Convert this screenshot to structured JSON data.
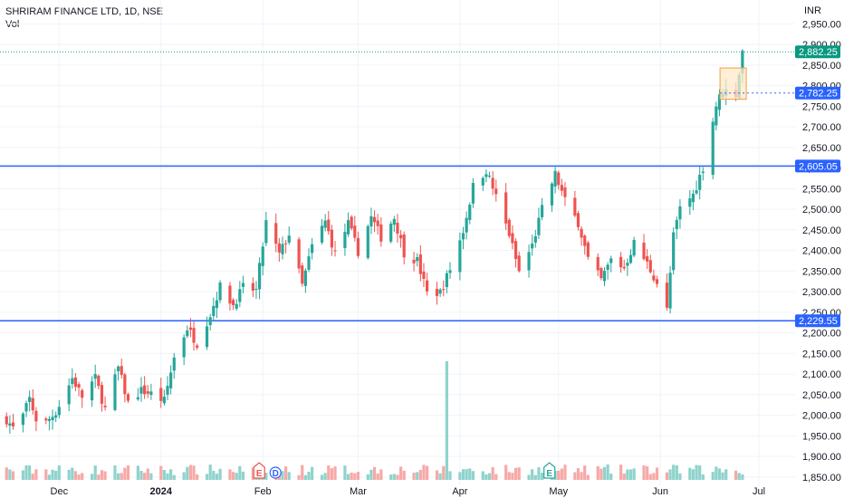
{
  "header": {
    "title": "SHRIRAM FINANCE LTD, 1D, NSE",
    "volume_label": "Vol"
  },
  "currency": "INR",
  "colors": {
    "up": "#26a69a",
    "down": "#ef5350",
    "up_volume": "#8fd3cc",
    "down_volume": "#f7a9a7",
    "level_line": "#2962ff",
    "current_price": "#089981",
    "zone_fill": "#fde9c8",
    "zone_border": "#f0a040",
    "grid": "#f0f3fa"
  },
  "events": [
    {
      "label": "E",
      "color": "#ef5350",
      "month_index": 3,
      "fraction": -0.1
    },
    {
      "label": "D",
      "color": "#2962ff",
      "month_index": 3,
      "fraction": 0.35
    },
    {
      "label": "E",
      "color": "#26a69a",
      "month_index": 6,
      "fraction": -0.25
    }
  ],
  "chart_data": {
    "type": "candlestick",
    "title": "SHRIRAM FINANCE LTD, 1D, NSE",
    "ylim": [
      1830,
      2975
    ],
    "y_ticks": [
      1850,
      1900,
      1950,
      2000,
      2050,
      2100,
      2150,
      2200,
      2250,
      2300,
      2350,
      2400,
      2450,
      2500,
      2550,
      2600,
      2650,
      2700,
      2750,
      2800,
      2850,
      2900,
      2950
    ],
    "y_tick_labels": [
      "1,850.00",
      "1,900.00",
      "1,950.00",
      "2,000.00",
      "2,050.00",
      "2,100.00",
      "2,150.00",
      "2,200.00",
      "2,250.00",
      "2,300.00",
      "2,350.00",
      "2,400.00",
      "2,450.00",
      "2,500.00",
      "2,550.00",
      "2,600.00",
      "2,650.00",
      "2,700.00",
      "2,750.00",
      "2,800.00",
      "2,850.00",
      "2,900.00",
      "2,950.00"
    ],
    "x_labels": [
      "Dec",
      "2024",
      "Feb",
      "Mar",
      "Apr",
      "May",
      "Jun",
      "Jul"
    ],
    "horizontal_levels": [
      {
        "value": 2605.05,
        "label": "2,605.05"
      },
      {
        "value": 2229.55,
        "label": "2,229.55"
      }
    ],
    "last_price": {
      "value": 2882.25,
      "label": "2,882.25"
    },
    "marked_price": {
      "value": 2782.25,
      "label": "2,782.25"
    },
    "zone": {
      "top": 2843,
      "bottom": 2767
    },
    "anchors": [
      [
        "2023-11-15",
        1990
      ],
      [
        "2023-11-18",
        1958
      ],
      [
        "2023-11-22",
        2040
      ],
      [
        "2023-11-25",
        1965
      ],
      [
        "2023-11-30",
        2008
      ],
      [
        "2023-12-05",
        2090
      ],
      [
        "2023-12-08",
        2045
      ],
      [
        "2023-12-12",
        2090
      ],
      [
        "2023-12-15",
        2015
      ],
      [
        "2023-12-19",
        2115
      ],
      [
        "2023-12-22",
        2030
      ],
      [
        "2023-12-26",
        2060
      ],
      [
        "2023-12-29",
        2052
      ],
      [
        "2024-01-02",
        2035
      ],
      [
        "2024-01-05",
        2140
      ],
      [
        "2024-01-09",
        2212
      ],
      [
        "2024-01-12",
        2175
      ],
      [
        "2024-01-16",
        2245
      ],
      [
        "2024-01-19",
        2312
      ],
      [
        "2024-01-23",
        2268
      ],
      [
        "2024-01-26",
        2310
      ],
      [
        "2024-01-30",
        2303
      ],
      [
        "2024-02-02",
        2468
      ],
      [
        "2024-02-06",
        2390
      ],
      [
        "2024-02-09",
        2440
      ],
      [
        "2024-02-13",
        2315
      ],
      [
        "2024-02-16",
        2410
      ],
      [
        "2024-02-20",
        2470
      ],
      [
        "2024-02-23",
        2392
      ],
      [
        "2024-02-27",
        2465
      ],
      [
        "2024-03-01",
        2398
      ],
      [
        "2024-03-05",
        2480
      ],
      [
        "2024-03-08",
        2432
      ],
      [
        "2024-03-12",
        2480
      ],
      [
        "2024-03-15",
        2395
      ],
      [
        "2024-03-19",
        2375
      ],
      [
        "2024-03-22",
        2296
      ],
      [
        "2024-03-26",
        2298
      ],
      [
        "2024-03-29",
        2355
      ],
      [
        "2024-04-02",
        2448
      ],
      [
        "2024-04-05",
        2555
      ],
      [
        "2024-04-09",
        2595
      ],
      [
        "2024-04-12",
        2530
      ],
      [
        "2024-04-16",
        2440
      ],
      [
        "2024-04-19",
        2348
      ],
      [
        "2024-04-23",
        2412
      ],
      [
        "2024-04-26",
        2500
      ],
      [
        "2024-04-30",
        2585
      ],
      [
        "2024-05-03",
        2520
      ],
      [
        "2024-05-07",
        2468
      ],
      [
        "2024-05-10",
        2378
      ],
      [
        "2024-05-14",
        2328
      ],
      [
        "2024-05-17",
        2378
      ],
      [
        "2024-05-21",
        2358
      ],
      [
        "2024-05-24",
        2418
      ],
      [
        "2024-05-28",
        2368
      ],
      [
        "2024-05-31",
        2322
      ],
      [
        "2024-06-03",
        2255
      ],
      [
        "2024-06-05",
        2435
      ],
      [
        "2024-06-07",
        2502
      ],
      [
        "2024-06-11",
        2535
      ],
      [
        "2024-06-14",
        2602
      ],
      [
        "2024-06-18",
        2752
      ],
      [
        "2024-06-20",
        2790
      ],
      [
        "2024-06-24",
        2780
      ],
      [
        "2024-06-26",
        2882.25
      ]
    ],
    "volume_spike_date": "2024-03-28",
    "event_range": [
      "2023-11-13",
      "2024-07-01"
    ]
  }
}
